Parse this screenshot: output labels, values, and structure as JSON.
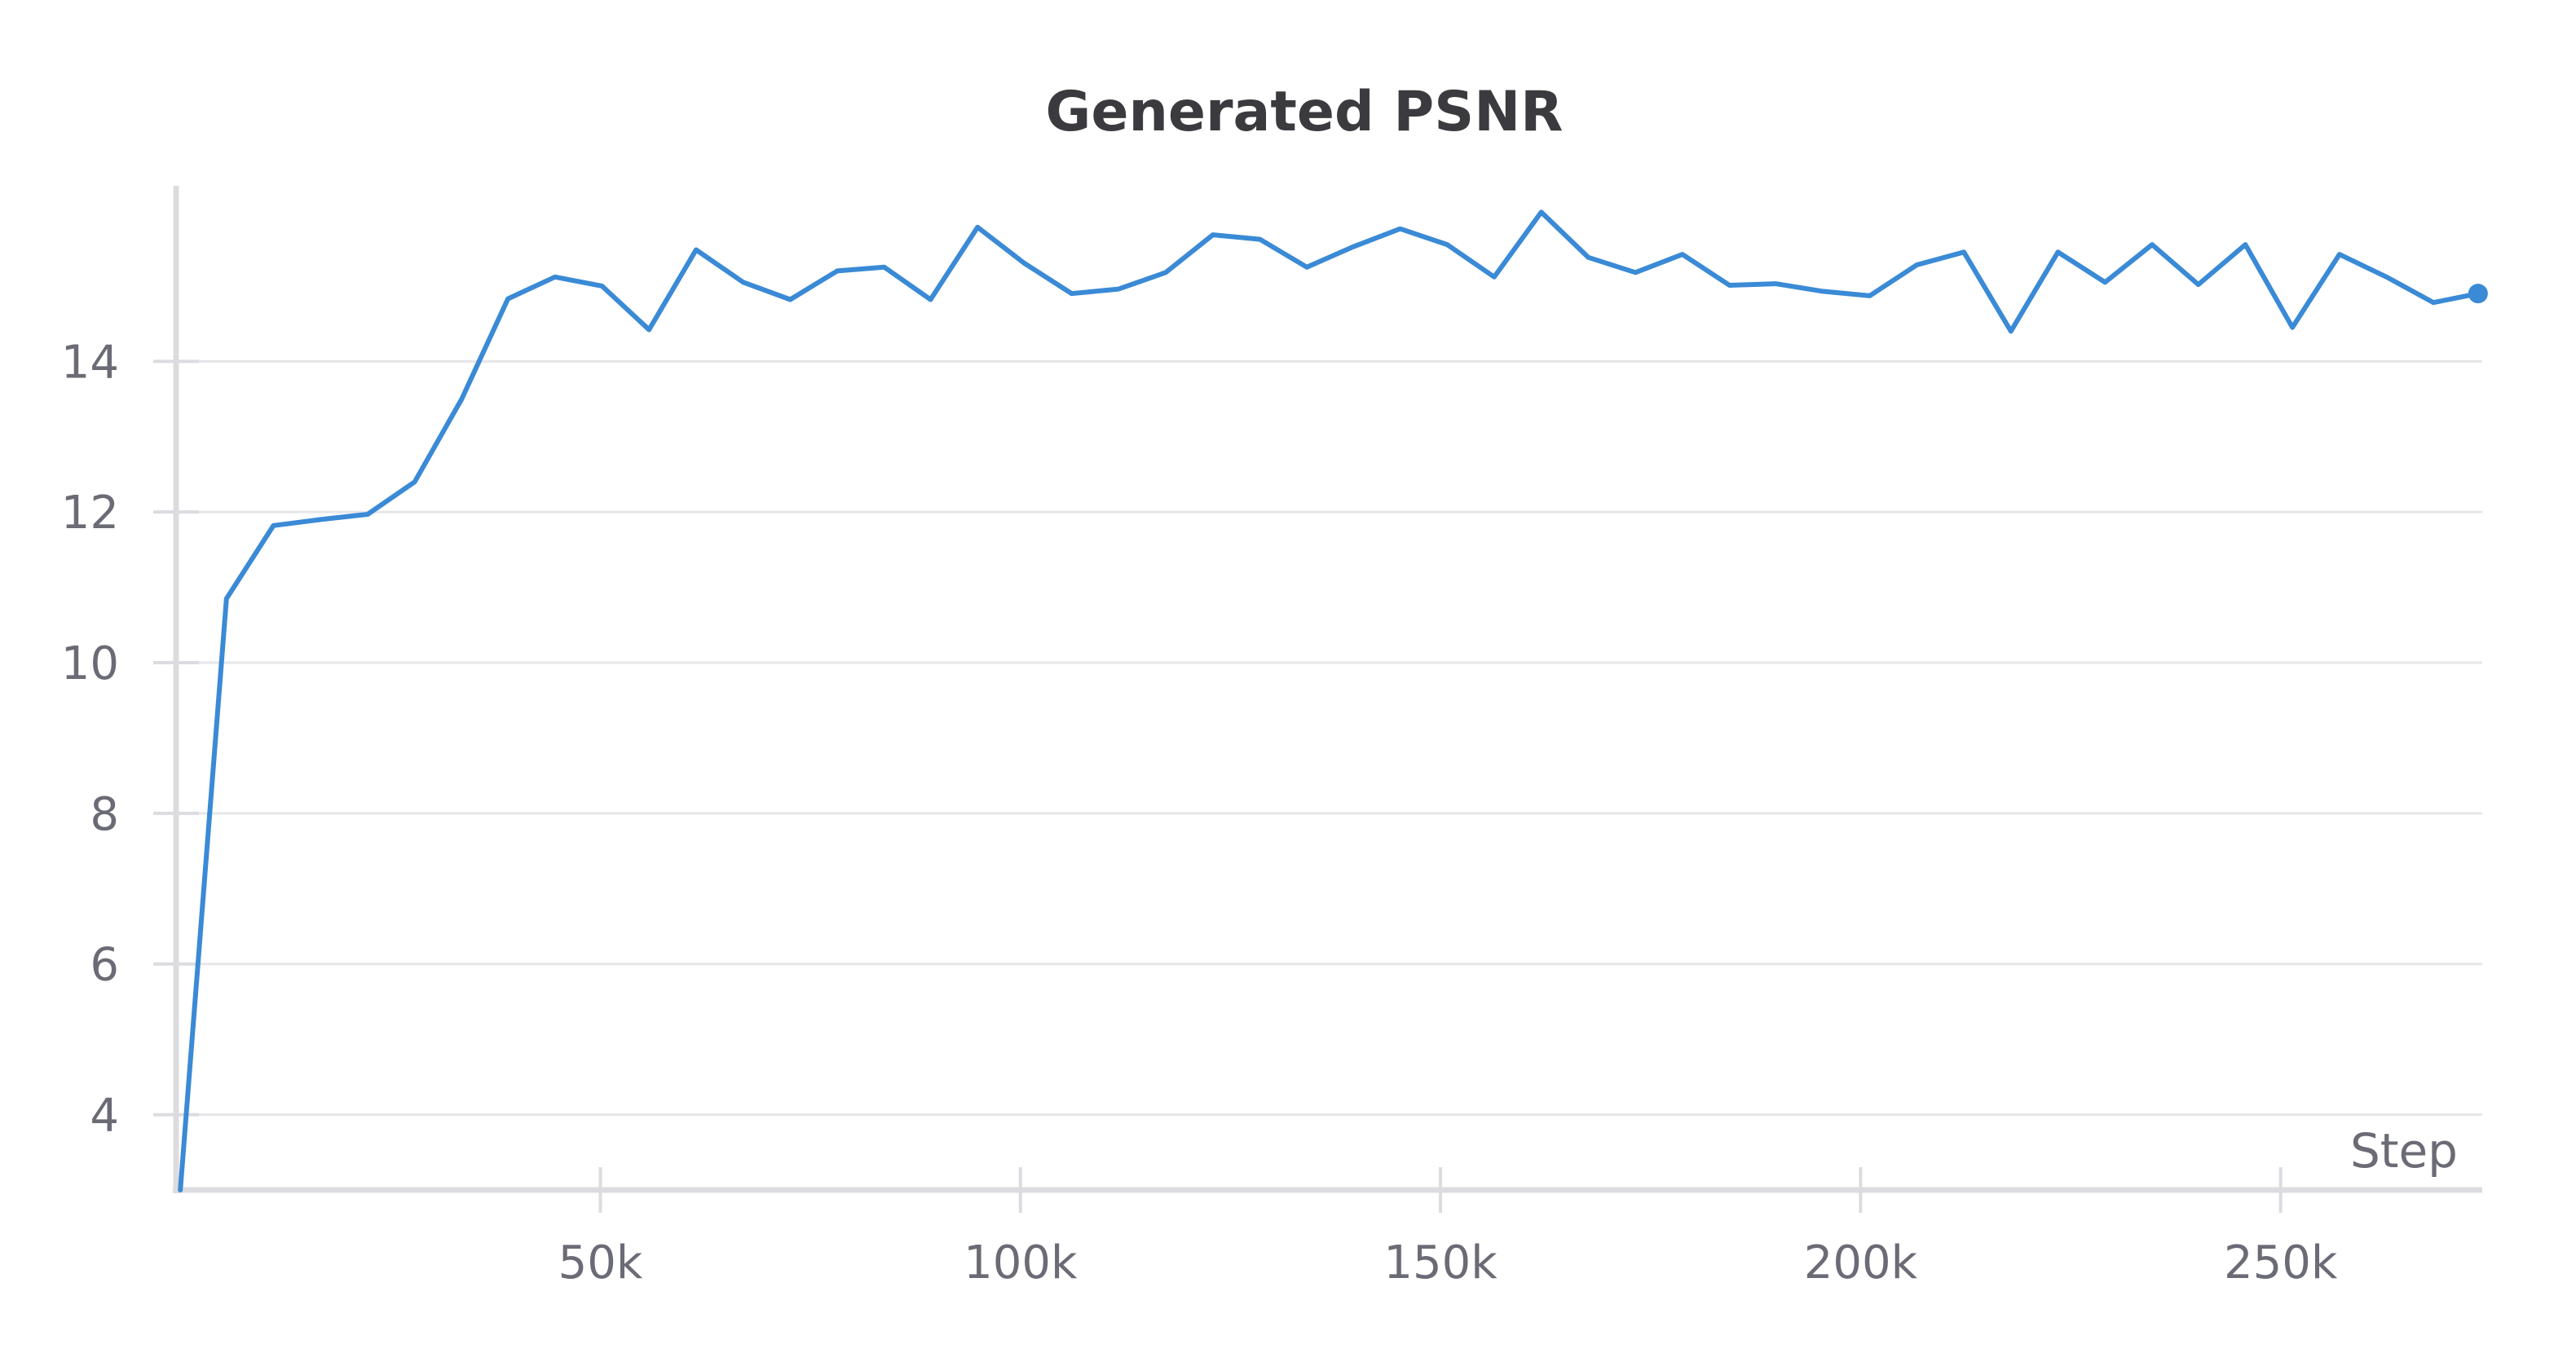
{
  "chart_data": {
    "type": "line",
    "title": "Generated PSNR",
    "xlabel": "Step",
    "ylabel": "",
    "xlim": [
      -500,
      274000
    ],
    "ylim": [
      3,
      16.2
    ],
    "x_ticks": [
      {
        "value": 50000,
        "label": "50k"
      },
      {
        "value": 100000,
        "label": "100k"
      },
      {
        "value": 150000,
        "label": "150k"
      },
      {
        "value": 200000,
        "label": "200k"
      },
      {
        "value": 250000,
        "label": "250k"
      }
    ],
    "y_ticks": [
      {
        "value": 4,
        "label": "4"
      },
      {
        "value": 6,
        "label": "6"
      },
      {
        "value": 8,
        "label": "8"
      },
      {
        "value": 10,
        "label": "10"
      },
      {
        "value": 12,
        "label": "12"
      },
      {
        "value": 14,
        "label": "14"
      }
    ],
    "grid": true,
    "series": [
      {
        "color": "#3a8ad6",
        "x": [
          0,
          5500,
          11100,
          16700,
          22300,
          27900,
          33500,
          39000,
          44600,
          50200,
          55800,
          61400,
          67000,
          72600,
          78200,
          83800,
          89300,
          94900,
          100500,
          106100,
          111700,
          117300,
          122900,
          128500,
          134100,
          139600,
          145200,
          150800,
          156400,
          162000,
          167600,
          173200,
          178800,
          184400,
          189900,
          195500,
          201100,
          206700,
          212300,
          217900,
          223500,
          229100,
          234700,
          240200,
          245800,
          251400,
          257000,
          262600,
          268200,
          273500
        ],
        "values": [
          3.0,
          10.85,
          11.82,
          11.9,
          11.97,
          12.4,
          13.5,
          14.83,
          15.12,
          15.0,
          14.42,
          15.48,
          15.05,
          14.82,
          15.2,
          15.25,
          14.82,
          15.78,
          15.3,
          14.9,
          14.96,
          15.18,
          15.68,
          15.62,
          15.25,
          15.52,
          15.76,
          15.55,
          15.12,
          15.98,
          15.38,
          15.18,
          15.42,
          15.01,
          15.03,
          14.93,
          14.87,
          15.28,
          15.45,
          14.4,
          15.45,
          15.05,
          15.55,
          15.02,
          15.55,
          14.45,
          15.42,
          15.12,
          14.78,
          14.9
        ]
      }
    ],
    "end_marker": true
  }
}
